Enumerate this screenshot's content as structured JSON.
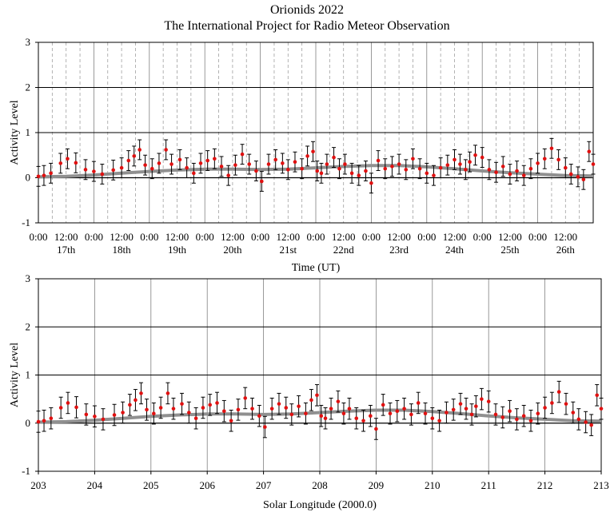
{
  "title": "Orionids 2022",
  "subtitle": "The International Project for Radio Meteor Observation",
  "colors": {
    "points": "#e01010",
    "errorbars": "#000000",
    "average": "#909090",
    "majorgrid": "#000000",
    "minorgrid": "#a0a0a0"
  },
  "chart_data": [
    {
      "type": "scatter",
      "xlabel": "Time  (UT)",
      "ylabel": "Activity  Level",
      "ylim": [
        -1,
        3
      ],
      "yticks": [
        "3",
        "2",
        "1",
        "0",
        "-1"
      ],
      "time_ticks": [
        "0:00",
        "12:00",
        "0:00",
        "12:00",
        "0:00",
        "12:00",
        "0:00",
        "12:00",
        "0:00",
        "12:00",
        "0:00",
        "12:00",
        "0:00",
        "12:00",
        "0:00",
        "12:00",
        "0:00",
        "12:00",
        "0:00",
        "12:00"
      ],
      "day_labels": [
        "17th",
        "18th",
        "19th",
        "20th",
        "21st",
        "22nd",
        "23rd",
        "24th",
        "25th",
        "26th"
      ],
      "grid": true,
      "series": [
        {
          "values_note": "",
          "points": [
            [
              0.0,
              0.03
            ],
            [
              0.2,
              0.05
            ],
            [
              0.45,
              0.1
            ],
            [
              0.8,
              0.32
            ],
            [
              1.05,
              0.42
            ],
            [
              1.35,
              0.33
            ],
            [
              1.7,
              0.18
            ],
            [
              2.0,
              0.14
            ],
            [
              2.3,
              0.08
            ],
            [
              2.7,
              0.17
            ],
            [
              3.0,
              0.22
            ],
            [
              3.25,
              0.38
            ],
            [
              3.45,
              0.48
            ],
            [
              3.65,
              0.62
            ],
            [
              3.85,
              0.28
            ],
            [
              4.1,
              0.2
            ],
            [
              4.35,
              0.32
            ],
            [
              4.6,
              0.62
            ],
            [
              4.8,
              0.3
            ],
            [
              5.1,
              0.4
            ],
            [
              5.35,
              0.22
            ],
            [
              5.6,
              0.1
            ],
            [
              5.85,
              0.32
            ],
            [
              6.1,
              0.38
            ],
            [
              6.35,
              0.42
            ],
            [
              6.6,
              0.25
            ],
            [
              6.85,
              0.05
            ],
            [
              7.1,
              0.28
            ],
            [
              7.35,
              0.52
            ],
            [
              7.6,
              0.3
            ],
            [
              7.85,
              0.15
            ],
            [
              8.05,
              -0.08
            ],
            [
              8.3,
              0.3
            ],
            [
              8.55,
              0.4
            ],
            [
              8.8,
              0.32
            ],
            [
              9.0,
              0.18
            ],
            [
              9.25,
              0.35
            ],
            [
              9.5,
              0.2
            ],
            [
              9.7,
              0.48
            ],
            [
              9.9,
              0.58
            ],
            [
              10.05,
              0.15
            ],
            [
              10.2,
              0.1
            ],
            [
              10.4,
              0.3
            ],
            [
              10.65,
              0.45
            ],
            [
              10.85,
              0.2
            ],
            [
              11.05,
              0.3
            ],
            [
              11.3,
              0.1
            ],
            [
              11.55,
              0.05
            ],
            [
              11.8,
              0.15
            ],
            [
              12.0,
              -0.12
            ],
            [
              12.25,
              0.38
            ],
            [
              12.5,
              0.2
            ],
            [
              12.75,
              0.25
            ],
            [
              13.0,
              0.3
            ],
            [
              13.25,
              0.18
            ],
            [
              13.5,
              0.42
            ],
            [
              13.75,
              0.2
            ],
            [
              14.0,
              0.1
            ],
            [
              14.25,
              0.05
            ],
            [
              14.5,
              0.22
            ],
            [
              14.75,
              0.28
            ],
            [
              15.0,
              0.4
            ],
            [
              15.2,
              0.3
            ],
            [
              15.4,
              0.18
            ],
            [
              15.55,
              0.35
            ],
            [
              15.75,
              0.5
            ],
            [
              16.0,
              0.45
            ],
            [
              16.25,
              0.18
            ],
            [
              16.5,
              0.12
            ],
            [
              16.75,
              0.25
            ],
            [
              17.0,
              0.08
            ],
            [
              17.25,
              0.15
            ],
            [
              17.5,
              0.05
            ],
            [
              17.75,
              0.2
            ],
            [
              18.0,
              0.32
            ],
            [
              18.25,
              0.42
            ],
            [
              18.5,
              0.65
            ],
            [
              18.75,
              0.4
            ],
            [
              19.0,
              0.22
            ],
            [
              19.2,
              0.08
            ],
            [
              19.45,
              0.02
            ],
            [
              19.65,
              -0.04
            ],
            [
              19.85,
              0.58
            ],
            [
              20.0,
              0.3
            ]
          ]
        }
      ],
      "average_curve": [
        [
          0,
          0.02
        ],
        [
          1,
          0.03
        ],
        [
          2,
          0.06
        ],
        [
          3,
          0.1
        ],
        [
          4,
          0.14
        ],
        [
          5,
          0.17
        ],
        [
          6,
          0.19
        ],
        [
          7,
          0.19
        ],
        [
          8,
          0.18
        ],
        [
          9,
          0.19
        ],
        [
          10,
          0.22
        ],
        [
          11,
          0.25
        ],
        [
          12,
          0.27
        ],
        [
          13,
          0.27
        ],
        [
          14,
          0.24
        ],
        [
          15,
          0.2
        ],
        [
          16,
          0.15
        ],
        [
          17,
          0.11
        ],
        [
          18,
          0.08
        ],
        [
          19,
          0.05
        ],
        [
          20,
          0.04
        ]
      ]
    },
    {
      "type": "scatter",
      "xlabel": "Solar Longitude  (2000.0)",
      "ylabel": "Activity  Level",
      "ylim": [
        -1,
        3
      ],
      "xlim": [
        203,
        213
      ],
      "yticks": [
        "3",
        "2",
        "1",
        "0",
        "-1"
      ],
      "xticks": [
        "203",
        "204",
        "205",
        "206",
        "207",
        "208",
        "209",
        "210",
        "211",
        "212",
        "213"
      ],
      "grid": true
    }
  ]
}
